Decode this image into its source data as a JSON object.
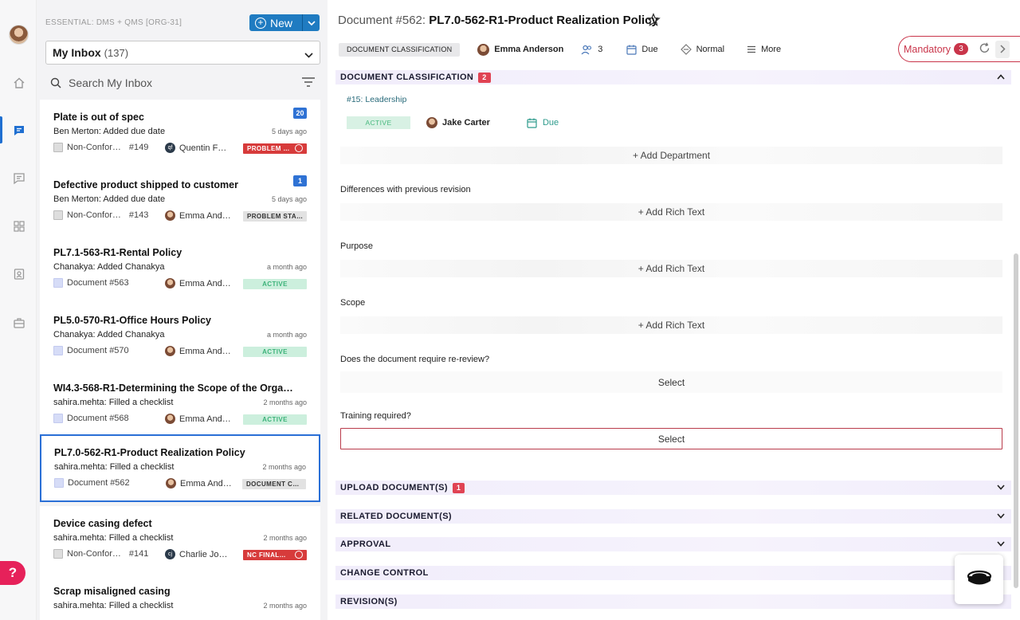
{
  "org": "ESSENTIAL: DMS + QMS [ORG-31]",
  "new_button": "New",
  "inbox": {
    "label": "My Inbox",
    "count": "(137)"
  },
  "search": {
    "placeholder": "Search My Inbox"
  },
  "cards": [
    {
      "title": "Plate is out of spec",
      "badge": "20",
      "who": "Ben Merton",
      "action": ": Added due date",
      "time": "5 days ago",
      "type": "Non-Confor…",
      "num": "#149",
      "assignee": "Quentin F…",
      "assignee_initials": "qf",
      "status": "PROBLEM …"
    },
    {
      "title": "Defective product shipped to customer",
      "badge": "1",
      "who": "Ben Merton",
      "action": ": Added due date",
      "time": "5 days ago",
      "type": "Non-Confor…",
      "num": "#143",
      "assignee": "Emma And…",
      "status": "PROBLEM STA…"
    },
    {
      "title": "PL7.1-563-R1-Rental Policy",
      "who": "Chanakya",
      "action": ": Added Chanakya",
      "time": "a month ago",
      "type": "Document #563",
      "assignee": "Emma And…",
      "status": "ACTIVE"
    },
    {
      "title": "PL5.0-570-R1-Office Hours Policy",
      "who": "Chanakya",
      "action": ": Added Chanakya",
      "time": "a month ago",
      "type": "Document #570",
      "assignee": "Emma And…",
      "status": "ACTIVE"
    },
    {
      "title": "WI4.3-568-R1-Determining the Scope of the Organiz…",
      "who": "sahira.mehta",
      "action": ": Filled a checklist",
      "time": "2 months ago",
      "type": "Document #568",
      "assignee": "Emma And…",
      "status": "ACTIVE"
    },
    {
      "title": "PL7.0-562-R1-Product Realization Policy",
      "who": "sahira.mehta",
      "action": ": Filled a checklist",
      "time": "2 months ago",
      "type": "Document #562",
      "assignee": "Emma And…",
      "status": "DOCUMENT C…"
    },
    {
      "title": "Device casing defect",
      "who": "sahira.mehta",
      "action": ": Filled a checklist",
      "time": "2 months ago",
      "type": "Non-Confor…",
      "num": "#141",
      "assignee": "Charlie Jo…",
      "assignee_initials": "cj",
      "status": "NC FINAL…"
    },
    {
      "title": "Scrap misaligned casing",
      "who": "sahira.mehta",
      "action": ": Filled a checklist",
      "time": "2 months ago"
    }
  ],
  "doc": {
    "prefix": "Document #562:",
    "title": "PL7.0-562-R1-Product Realization Policy",
    "classification_chip": "DOCUMENT CLASSIFICATION",
    "owner": "Emma Anderson",
    "participants": "3",
    "due": "Due",
    "priority": "Normal",
    "more": "More",
    "mandatory_label": "Mandatory",
    "mandatory_count": "3"
  },
  "sections": {
    "classification": {
      "label": "DOCUMENT CLASSIFICATION",
      "count": "2"
    },
    "upload": {
      "label": "UPLOAD DOCUMENT(S)",
      "count": "1"
    },
    "related": {
      "label": "RELATED DOCUMENT(S)"
    },
    "approval": {
      "label": "APPROVAL"
    },
    "change_control": {
      "label": "CHANGE CONTROL"
    },
    "revisions": {
      "label": "REVISION(S)"
    }
  },
  "classification": {
    "link": "#15: Leadership",
    "status": "ACTIVE",
    "owner": "Jake Carter",
    "due": "Due",
    "add_department": "+ Add Department"
  },
  "fields": {
    "differences": {
      "label": "Differences with previous revision",
      "action": "+ Add Rich Text"
    },
    "purpose": {
      "label": "Purpose",
      "action": "+ Add Rich Text"
    },
    "scope": {
      "label": "Scope",
      "action": "+ Add Rich Text"
    },
    "rereview": {
      "label": "Does the document require re-review?",
      "value": "Select"
    },
    "training": {
      "label": "Training required?",
      "value": "Select"
    }
  },
  "colors": {
    "accent": "#1f7bc1",
    "danger": "#c9354a",
    "active_green": "#49b97f",
    "selection": "#2a6fd6"
  }
}
